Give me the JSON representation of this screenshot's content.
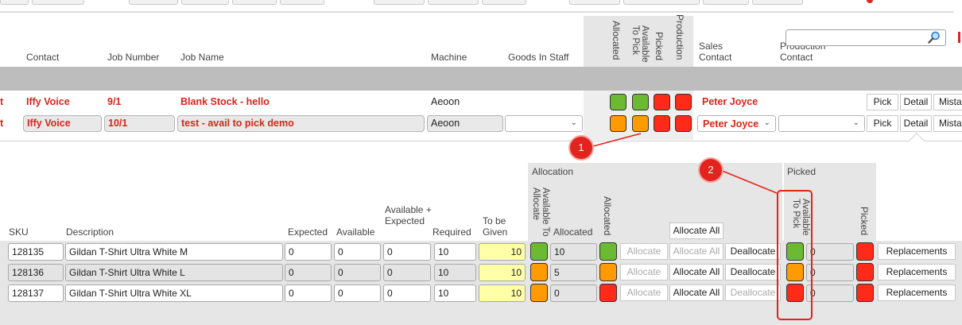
{
  "top_jobs": {
    "headers": {
      "contact": "Contact",
      "job_number": "Job Number",
      "job_name": "Job Name",
      "machine": "Machine",
      "goods_in_staff": "Goods In Staff",
      "allocated": "Allocated",
      "available_to_pick": "Available To Pick",
      "picked": "Picked",
      "production": "Production",
      "sales_contact": "Sales Contact",
      "production_contact": "Production Contact"
    },
    "rows": [
      {
        "prefix": "t",
        "contact": "Iffy Voice",
        "job_number": "9/1",
        "job_name": "Blank Stock - hello",
        "machine": "Aeoon",
        "statuses": [
          "green",
          "green",
          "red",
          "red"
        ],
        "sales_contact": "Peter Joyce",
        "actions": [
          "Pick",
          "Detail",
          "Mista"
        ]
      },
      {
        "prefix": "t",
        "contact": "Iffy Voice",
        "job_number": "10/1",
        "job_name": "test - avail to pick demo",
        "machine": "Aeoon",
        "statuses": [
          "orange",
          "orange",
          "red",
          "red"
        ],
        "sales_contact": "Peter Joyce",
        "actions": [
          "Pick",
          "Detail",
          "Mista"
        ]
      }
    ]
  },
  "callouts": [
    "1",
    "2"
  ],
  "detail": {
    "groups": {
      "allocation": "Allocation",
      "picked": "Picked"
    },
    "headers": {
      "sku": "SKU",
      "description": "Description",
      "expected": "Expected",
      "available": "Available",
      "available_expected": "Available + Expected",
      "required": "Required",
      "to_be_given": "To be Given",
      "available_to_allocate": "Available To Allocate",
      "allocated_num": "Allocated",
      "allocated": "Allocated",
      "available_to_pick": "Available To Pick",
      "picked": "Picked"
    },
    "allocate_all_header": "Allocate All",
    "rows": [
      {
        "sku": "128135",
        "description": "Gildan T-Shirt Ultra White M",
        "expected": "0",
        "available": "0",
        "available_expected": "0",
        "required": "10",
        "to_be_given": "10",
        "ata": "green",
        "allocated_num": "10",
        "allocated": "green",
        "allocate": "Allocate",
        "allocate_all": "Allocate All",
        "deallocate": "Deallocate",
        "atp": "green",
        "picked_num": "0",
        "picked": "red",
        "replacements": "Replacements"
      },
      {
        "sku": "128136",
        "description": "Gildan T-Shirt Ultra White L",
        "expected": "0",
        "available": "0",
        "available_expected": "0",
        "required": "10",
        "to_be_given": "10",
        "ata": "orange",
        "allocated_num": "5",
        "allocated": "orange",
        "allocate": "Allocate",
        "allocate_all": "Allocate All",
        "deallocate": "Deallocate",
        "atp": "orange",
        "picked_num": "0",
        "picked": "red",
        "replacements": "Replacements"
      },
      {
        "sku": "128137",
        "description": "Gildan T-Shirt Ultra White XL",
        "expected": "0",
        "available": "0",
        "available_expected": "0",
        "required": "10",
        "to_be_given": "10",
        "ata": "orange",
        "allocated_num": "0",
        "allocated": "red",
        "allocate": "Allocate",
        "allocate_all": "Allocate All",
        "deallocate": "Deallocate",
        "atp": "red",
        "picked_num": "0",
        "picked": "red",
        "replacements": "Replacements"
      }
    ]
  },
  "colors": {
    "green": "#6cba32",
    "orange": "#ff9a00",
    "red": "#ff2a18",
    "accent_red": "#d8261a",
    "callout": "#e3231d"
  }
}
